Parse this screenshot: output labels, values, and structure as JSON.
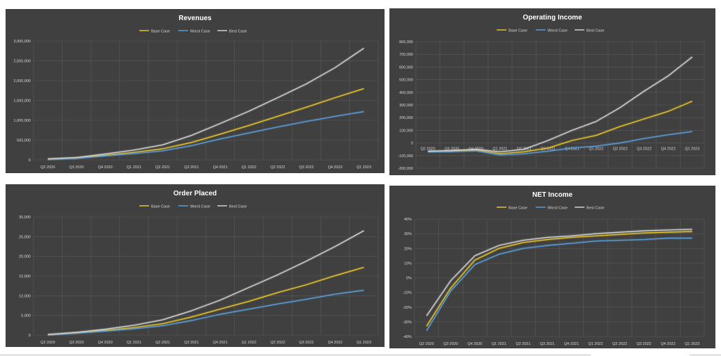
{
  "colors": {
    "panel_bg": "#404040",
    "grid": "#5a5a5a",
    "text": "#d9d9d9",
    "title": "#ffffff",
    "base": "#e6c229",
    "worst": "#5b9bd5",
    "best": "#d0d0d0"
  },
  "chart_data": [
    {
      "type": "line",
      "title": "Revenues",
      "categories": [
        "Q2 2020",
        "Q3 2020",
        "Q4 2020",
        "Q1 2021",
        "Q2 2021",
        "Q3 2021",
        "Q4 2021",
        "Q1 2022",
        "Q2 2022",
        "Q3 2022",
        "Q4 2022",
        "Q1 2023"
      ],
      "yticks": [
        "0",
        "500,000",
        "1,000,000",
        "1,500,000",
        "2,000,000",
        "2,500,000",
        "3,000,000"
      ],
      "ylim": [
        0,
        3000000
      ],
      "legend": "top-center",
      "grid": true,
      "series": [
        {
          "name": "Base Case",
          "values": [
            20000,
            50000,
            120000,
            190000,
            280000,
            440000,
            650000,
            870000,
            1100000,
            1330000,
            1570000,
            1800000
          ]
        },
        {
          "name": "Worst Case",
          "values": [
            15000,
            40000,
            100000,
            160000,
            230000,
            360000,
            530000,
            680000,
            830000,
            970000,
            1100000,
            1220000
          ]
        },
        {
          "name": "Best Case",
          "values": [
            25000,
            60000,
            150000,
            250000,
            380000,
            620000,
            920000,
            1230000,
            1570000,
            1920000,
            2330000,
            2820000
          ]
        }
      ]
    },
    {
      "type": "line",
      "title": "Operating Income",
      "categories": [
        "Q2 2020",
        "Q3 2020",
        "Q4 2020",
        "Q1 2021",
        "Q2 2021",
        "Q3 2021",
        "Q4 2021",
        "Q1 2022",
        "Q2 2022",
        "Q3 2022",
        "Q4 2022",
        "Q1 2023"
      ],
      "yticks": [
        "-200,000",
        "-100,000",
        "0",
        "100,000",
        "200,000",
        "300,000",
        "400,000",
        "500,000",
        "600,000",
        "700,000",
        "800,000"
      ],
      "ylim": [
        -200000,
        800000
      ],
      "legend": "top-center",
      "grid": true,
      "series": [
        {
          "name": "Base Case",
          "values": [
            -70000,
            -65000,
            -55000,
            -85000,
            -70000,
            -40000,
            20000,
            60000,
            130000,
            190000,
            250000,
            330000
          ]
        },
        {
          "name": "Worst Case",
          "values": [
            -70000,
            -68000,
            -62000,
            -95000,
            -85000,
            -65000,
            -40000,
            -25000,
            0,
            35000,
            65000,
            90000
          ]
        },
        {
          "name": "Best Case",
          "values": [
            -65000,
            -60000,
            -50000,
            -70000,
            -50000,
            20000,
            100000,
            170000,
            280000,
            410000,
            530000,
            680000
          ]
        }
      ]
    },
    {
      "type": "line",
      "title": "Order Placed",
      "categories": [
        "Q2 2020",
        "Q3 2020",
        "Q4 2020",
        "Q1 2021",
        "Q2 2021",
        "Q3 2021",
        "Q4 2021",
        "Q1 2022",
        "Q2 2022",
        "Q3 2022",
        "Q4 2022",
        "Q1 2023"
      ],
      "yticks": [
        "0",
        "5,000",
        "10,000",
        "15,000",
        "20,000",
        "25,000",
        "30,000"
      ],
      "ylim": [
        0,
        30000
      ],
      "legend": "top-center",
      "grid": true,
      "series": [
        {
          "name": "Base Case",
          "values": [
            100,
            600,
            1200,
            1900,
            2900,
            4600,
            6600,
            8600,
            10800,
            12800,
            15100,
            17200
          ]
        },
        {
          "name": "Worst Case",
          "values": [
            100,
            500,
            1000,
            1600,
            2400,
            3700,
            5300,
            6600,
            7900,
            9100,
            10400,
            11400
          ]
        },
        {
          "name": "Best Case",
          "values": [
            150,
            700,
            1500,
            2500,
            3900,
            6200,
            8900,
            12100,
            15300,
            18800,
            22500,
            26500
          ]
        }
      ]
    },
    {
      "type": "line",
      "title": "NET Income",
      "categories": [
        "Q2 2020",
        "Q3 2020",
        "Q4 2020",
        "Q1 2021",
        "Q2 2021",
        "Q3 2021",
        "Q4 2021",
        "Q1 2022",
        "Q2 2022",
        "Q3 2022",
        "Q4 2022",
        "Q1 2023"
      ],
      "yticks": [
        "-40%",
        "-30%",
        "-20%",
        "-10%",
        "0%",
        "10%",
        "20%",
        "30%",
        "40%"
      ],
      "ylim": [
        -40,
        40
      ],
      "legend": "top-center",
      "grid": true,
      "series": [
        {
          "name": "Base Case",
          "values": [
            -33,
            -7,
            12,
            20,
            24,
            26,
            27.5,
            28.5,
            29.5,
            30.5,
            31,
            31.5
          ]
        },
        {
          "name": "Worst Case",
          "values": [
            -36,
            -9,
            9,
            16,
            20,
            22,
            23.5,
            25,
            25.5,
            26,
            27,
            27
          ]
        },
        {
          "name": "Best Case",
          "values": [
            -26,
            -2,
            15,
            22,
            25.5,
            27.5,
            28.5,
            30,
            31,
            32,
            32.5,
            33
          ]
        }
      ]
    }
  ]
}
